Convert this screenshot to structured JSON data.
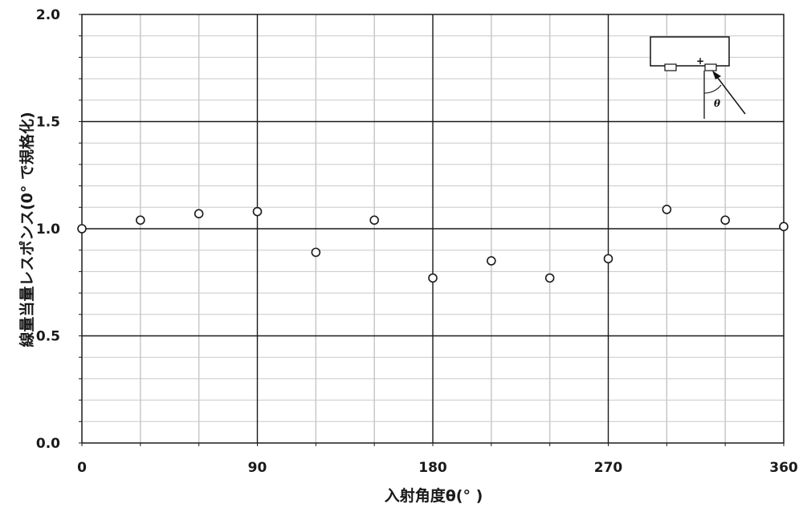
{
  "chart_data": {
    "type": "scatter",
    "title": "",
    "xlabel": "入射角度θ(° )",
    "ylabel": "線量当量レスポンス(0° で規格化)",
    "xlim": [
      0,
      360
    ],
    "ylim": [
      0.0,
      2.0
    ],
    "x_ticks": [
      "0",
      "90",
      "180",
      "270",
      "360"
    ],
    "y_ticks": [
      "0.0",
      "0.5",
      "1.0",
      "1.5",
      "2.0"
    ],
    "x_major_step": 90,
    "x_minor_step": 30,
    "y_major_step": 0.5,
    "y_minor_step": 0.1,
    "grid": true,
    "marker": "open-circle",
    "points": [
      {
        "x": 0,
        "y": 1.0
      },
      {
        "x": 30,
        "y": 1.04
      },
      {
        "x": 60,
        "y": 1.07
      },
      {
        "x": 90,
        "y": 1.08
      },
      {
        "x": 120,
        "y": 0.89
      },
      {
        "x": 150,
        "y": 1.04
      },
      {
        "x": 180,
        "y": 0.77
      },
      {
        "x": 210,
        "y": 0.85
      },
      {
        "x": 240,
        "y": 0.77
      },
      {
        "x": 270,
        "y": 0.86
      },
      {
        "x": 300,
        "y": 1.09
      },
      {
        "x": 330,
        "y": 1.04
      },
      {
        "x": 360,
        "y": 1.01
      }
    ]
  },
  "inset": {
    "angle_label": "θ",
    "plus_sign": "+"
  },
  "colors": {
    "major_grid": "#1a1a1a",
    "minor_grid": "#c8c8c8",
    "marker": "#1a1a1a"
  }
}
